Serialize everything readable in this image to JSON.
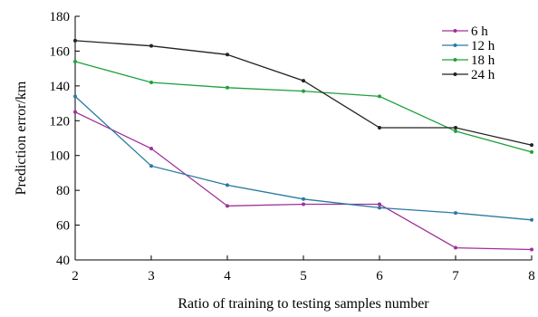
{
  "chart_data": {
    "type": "line",
    "x": [
      2,
      3,
      4,
      5,
      6,
      7,
      8
    ],
    "xlabel": "Ratio of training to testing samples number",
    "ylabel": "Prediction error/km",
    "xlim": [
      2,
      8
    ],
    "ylim": [
      40,
      180
    ],
    "xticks": [
      "2",
      "3",
      "4",
      "5",
      "6",
      "7",
      "8"
    ],
    "yticks": [
      "40",
      "60",
      "80",
      "100",
      "120",
      "140",
      "160",
      "180"
    ],
    "grid": false,
    "legend_position": "top-right",
    "series": [
      {
        "name": "6 h",
        "color": "#a0309a",
        "values": [
          125,
          104,
          71,
          72,
          72,
          47,
          46
        ]
      },
      {
        "name": "12 h",
        "color": "#2a7aa0",
        "values": [
          134,
          94,
          83,
          75,
          70,
          67,
          63
        ]
      },
      {
        "name": "18 h",
        "color": "#1fa03c",
        "values": [
          154,
          142,
          139,
          137,
          134,
          114,
          102
        ]
      },
      {
        "name": "24 h",
        "color": "#222222",
        "values": [
          166,
          163,
          158,
          143,
          116,
          116,
          106
        ]
      }
    ]
  }
}
